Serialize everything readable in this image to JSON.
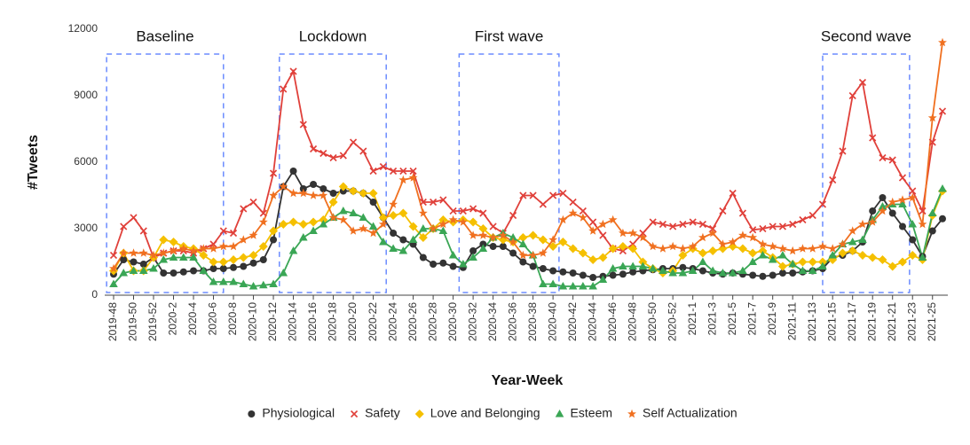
{
  "chart_data": {
    "type": "line",
    "y_label": "#Tweets",
    "x_label": "Year-Week",
    "categories": [
      "2019-48",
      null,
      "2019-50",
      null,
      "2019-52",
      null,
      "2020-2",
      null,
      "2020-4",
      null,
      "2020-6",
      null,
      "2020-8",
      null,
      "2020-10",
      null,
      "2020-12",
      null,
      "2020-14",
      null,
      "2020-16",
      null,
      "2020-18",
      null,
      "2020-20",
      null,
      "2020-22",
      null,
      "2020-24",
      null,
      "2020-26",
      null,
      "2020-28",
      null,
      "2020-30",
      null,
      "2020-32",
      null,
      "2020-34",
      null,
      "2020-36",
      null,
      "2020-38",
      null,
      "2020-40",
      null,
      "2020-42",
      null,
      "2020-44",
      null,
      "2020-46",
      null,
      "2020-48",
      null,
      "2020-50",
      null,
      "2020-52",
      null,
      "2021-1",
      null,
      "2021-3",
      null,
      "2021-5",
      null,
      "2021-7",
      null,
      "2021-9",
      null,
      "2021-11",
      null,
      "2021-13",
      null,
      "2021-15",
      null,
      "2021-17",
      null,
      "2021-19",
      null,
      "2021-21",
      null,
      "2021-23",
      null,
      "2021-25",
      null
    ],
    "ylim": [
      0,
      12000
    ],
    "yticks": [
      0,
      3000,
      6000,
      9000,
      12000
    ],
    "grid": false,
    "legend": "bottom",
    "annotations": [
      "Baseline",
      "Lockdown",
      "First wave",
      "Second wave"
    ],
    "series": [
      {
        "name": "Physiological",
        "color": "#333333",
        "marker": "circle",
        "values": [
          950,
          1600,
          1500,
          1400,
          1700,
          1000,
          1000,
          1050,
          1100,
          1100,
          1200,
          1200,
          1250,
          1300,
          1450,
          1600,
          2500,
          4900,
          5600,
          4800,
          5000,
          4800,
          4600,
          4700,
          4700,
          4600,
          4200,
          3500,
          2800,
          2500,
          2300,
          1700,
          1400,
          1450,
          1300,
          1250,
          2000,
          2300,
          2200,
          2200,
          1900,
          1500,
          1300,
          1200,
          1100,
          1050,
          1000,
          900,
          800,
          850,
          900,
          950,
          1050,
          1100,
          1150,
          1200,
          1200,
          1250,
          1200,
          1100,
          1000,
          950,
          1000,
          950,
          900,
          850,
          900,
          1000,
          1000,
          1050,
          1100,
          1200,
          1700,
          1800,
          2000,
          2400,
          3800,
          4400,
          3700,
          3100,
          2500,
          1750,
          2900,
          3450
        ]
      },
      {
        "name": "Safety",
        "color": "#e0403a",
        "marker": "x",
        "values": [
          1800,
          3100,
          3500,
          2900,
          1700,
          1900,
          2000,
          2000,
          1900,
          2100,
          2300,
          2900,
          2800,
          3900,
          4200,
          3700,
          5500,
          9300,
          10100,
          7700,
          6600,
          6400,
          6200,
          6300,
          6900,
          6500,
          5600,
          5800,
          5600,
          5600,
          5600,
          4200,
          4200,
          4300,
          3800,
          3800,
          3900,
          3700,
          3100,
          2800,
          3600,
          4500,
          4500,
          4100,
          4500,
          4600,
          4200,
          3800,
          3300,
          2700,
          2100,
          2000,
          2300,
          2800,
          3300,
          3200,
          3100,
          3200,
          3300,
          3200,
          3000,
          3800,
          4600,
          3700,
          2950,
          3000,
          3100,
          3100,
          3200,
          3400,
          3600,
          4100,
          5200,
          6500,
          9000,
          9600,
          7100,
          6200,
          6100,
          5300,
          4700,
          3800,
          6900,
          8300
        ]
      },
      {
        "name": "Love and Belonging",
        "color": "#f5c000",
        "marker": "diamond",
        "values": [
          1100,
          1900,
          1100,
          1100,
          1700,
          2500,
          2400,
          2200,
          2100,
          1800,
          1500,
          1500,
          1600,
          1700,
          1800,
          2200,
          2900,
          3200,
          3300,
          3200,
          3300,
          3400,
          4200,
          4900,
          4700,
          4600,
          4600,
          3500,
          3600,
          3700,
          3100,
          2600,
          3000,
          3400,
          3300,
          3400,
          3300,
          3000,
          2600,
          2500,
          2400,
          2600,
          2700,
          2500,
          2200,
          2400,
          2100,
          1900,
          1600,
          1700,
          2100,
          2200,
          2100,
          1500,
          1200,
          1000,
          1100,
          1800,
          2100,
          1900,
          2000,
          2100,
          2200,
          2100,
          1900,
          2000,
          1700,
          1300,
          1400,
          1500,
          1500,
          1500,
          1600,
          1900,
          2000,
          1800,
          1700,
          1600,
          1300,
          1500,
          1800,
          1600,
          3600,
          4700
        ]
      },
      {
        "name": "Esteem",
        "color": "#3aa655",
        "marker": "triangle",
        "values": [
          500,
          1000,
          1100,
          1100,
          1200,
          1600,
          1700,
          1700,
          1700,
          1100,
          600,
          600,
          600,
          500,
          400,
          450,
          500,
          1000,
          2000,
          2600,
          2900,
          3200,
          3500,
          3800,
          3700,
          3500,
          3100,
          2400,
          2100,
          2000,
          2500,
          3000,
          3000,
          2900,
          1800,
          1400,
          1700,
          2100,
          2600,
          2800,
          2600,
          2300,
          1800,
          500,
          500,
          400,
          400,
          400,
          400,
          700,
          1200,
          1300,
          1300,
          1300,
          1200,
          1100,
          1000,
          1000,
          1100,
          1500,
          1100,
          1000,
          1000,
          1100,
          1500,
          1800,
          1600,
          1800,
          1400,
          1100,
          1100,
          1300,
          1800,
          2300,
          2400,
          2500,
          3400,
          4000,
          4100,
          4100,
          3200,
          1700,
          3700,
          4800
        ]
      },
      {
        "name": "Self Actualization",
        "color": "#f07020",
        "marker": "star",
        "values": [
          1200,
          1900,
          1900,
          1900,
          1800,
          1900,
          2000,
          2100,
          2000,
          2100,
          2100,
          2200,
          2200,
          2500,
          2700,
          3300,
          4500,
          4900,
          4600,
          4600,
          4500,
          4500,
          3500,
          3400,
          2900,
          3000,
          2800,
          3200,
          4100,
          5200,
          5300,
          3700,
          3000,
          3200,
          3400,
          3300,
          2700,
          2700,
          2600,
          2700,
          2400,
          1800,
          1800,
          1900,
          2500,
          3400,
          3700,
          3500,
          2900,
          3200,
          3400,
          2800,
          2800,
          2600,
          2200,
          2100,
          2200,
          2100,
          2200,
          2600,
          2800,
          2300,
          2400,
          2700,
          2600,
          2300,
          2200,
          2100,
          2000,
          2100,
          2100,
          2200,
          2100,
          2300,
          2900,
          3200,
          3300,
          3800,
          4200,
          4300,
          4400,
          3200,
          8000,
          11400
        ]
      }
    ]
  }
}
